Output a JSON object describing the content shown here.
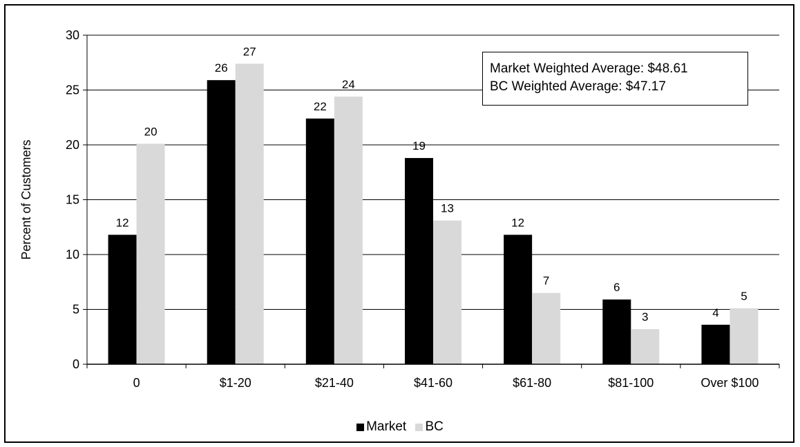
{
  "chart_data": {
    "type": "bar",
    "categories": [
      "0",
      "$1-20",
      "$21-40",
      "$41-60",
      "$61-80",
      "$81-100",
      "Over $100"
    ],
    "series": [
      {
        "name": "Market",
        "color": "#000000",
        "values": [
          11.8,
          25.9,
          22.4,
          18.8,
          11.8,
          5.9,
          3.6
        ],
        "labels": [
          "12",
          "26",
          "22",
          "19",
          "12",
          "6",
          "4"
        ]
      },
      {
        "name": "BC",
        "color": "#d9d9d9",
        "values": [
          20.1,
          27.4,
          24.4,
          13.1,
          6.5,
          3.2,
          5.1
        ],
        "labels": [
          "20",
          "27",
          "24",
          "13",
          "7",
          "3",
          "5"
        ]
      }
    ],
    "title": "",
    "xlabel": "",
    "ylabel": "Percent of Customers",
    "ylim": [
      0,
      30
    ],
    "yticks": [
      "0",
      "5",
      "10",
      "15",
      "20",
      "25",
      "30"
    ],
    "grid": true,
    "legend_position": "bottom",
    "annotations": [
      "Market Weighted Average: $48.61",
      "BC Weighted Average: $47.17"
    ]
  }
}
